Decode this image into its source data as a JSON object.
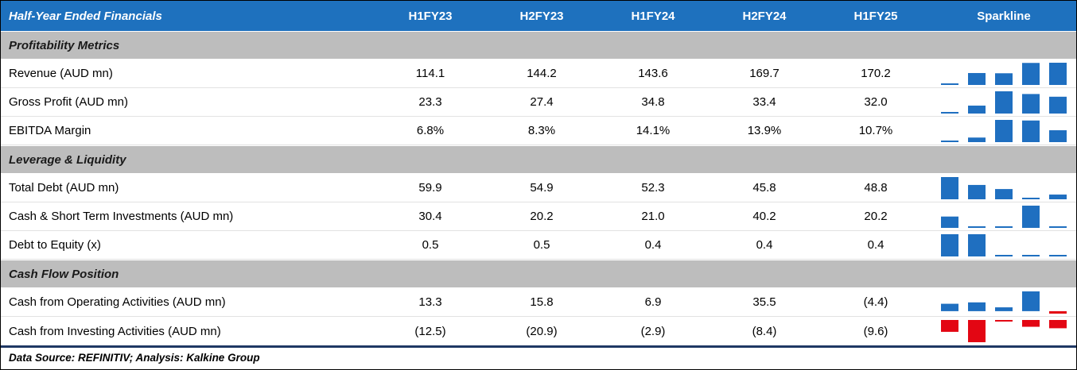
{
  "chart_data": {
    "type": "table",
    "title": "Half-Year Ended Financials",
    "columns": [
      "H1FY23",
      "H2FY23",
      "H1FY24",
      "H2FY24",
      "H1FY25",
      "Sparkline"
    ],
    "sections": [
      {
        "name": "Profitability Metrics",
        "rows": [
          {
            "label": "Revenue (AUD mn)",
            "display": [
              "114.1",
              "144.2",
              "143.6",
              "169.7",
              "170.2"
            ],
            "values": [
              114.1,
              144.2,
              143.6,
              169.7,
              170.2
            ]
          },
          {
            "label": "Gross Profit (AUD mn)",
            "display": [
              "23.3",
              "27.4",
              "34.8",
              "33.4",
              "32.0"
            ],
            "values": [
              23.3,
              27.4,
              34.8,
              33.4,
              32.0
            ]
          },
          {
            "label": "EBITDA Margin",
            "display": [
              "6.8%",
              "8.3%",
              "14.1%",
              "13.9%",
              "10.7%"
            ],
            "values": [
              6.8,
              8.3,
              14.1,
              13.9,
              10.7
            ]
          }
        ]
      },
      {
        "name": "Leverage & Liquidity",
        "rows": [
          {
            "label": "Total Debt (AUD mn)",
            "display": [
              "59.9",
              "54.9",
              "52.3",
              "45.8",
              "48.8"
            ],
            "values": [
              59.9,
              54.9,
              52.3,
              45.8,
              48.8
            ]
          },
          {
            "label": "Cash & Short Term Investments (AUD mn)",
            "display": [
              "30.4",
              "20.2",
              "21.0",
              "40.2",
              "20.2"
            ],
            "values": [
              30.4,
              20.2,
              21.0,
              40.2,
              20.2
            ]
          },
          {
            "label": "Debt to Equity (x)",
            "display": [
              "0.5",
              "0.5",
              "0.4",
              "0.4",
              "0.4"
            ],
            "values": [
              0.5,
              0.5,
              0.4,
              0.4,
              0.4
            ]
          }
        ]
      },
      {
        "name": "Cash Flow Position",
        "rows": [
          {
            "label": "Cash from Operating Activities (AUD mn)",
            "display": [
              "13.3",
              "15.8",
              "6.9",
              "35.5",
              "(4.4)"
            ],
            "values": [
              13.3,
              15.8,
              6.9,
              35.5,
              -4.4
            ]
          },
          {
            "label": "Cash from Investing Activities (AUD mn)",
            "display": [
              "(12.5)",
              "(20.9)",
              "(2.9)",
              "(8.4)",
              "(9.6)"
            ],
            "values": [
              -12.5,
              -20.9,
              -2.9,
              -8.4,
              -9.6
            ]
          }
        ]
      }
    ],
    "sparkline": {
      "type": "bar",
      "positive_color": "#1F6FC0",
      "negative_color": "#E30613",
      "scaling": "min-max per row, axis at zero when mixed signs"
    },
    "colors": {
      "header_bg": "#1E71BE",
      "header_text": "#FFFFFF",
      "section_bg": "#BDBDBD",
      "footer_rule": "#1F3864"
    }
  },
  "footer": {
    "text": "Data Source: REFINITIV; Analysis: Kalkine Group"
  }
}
